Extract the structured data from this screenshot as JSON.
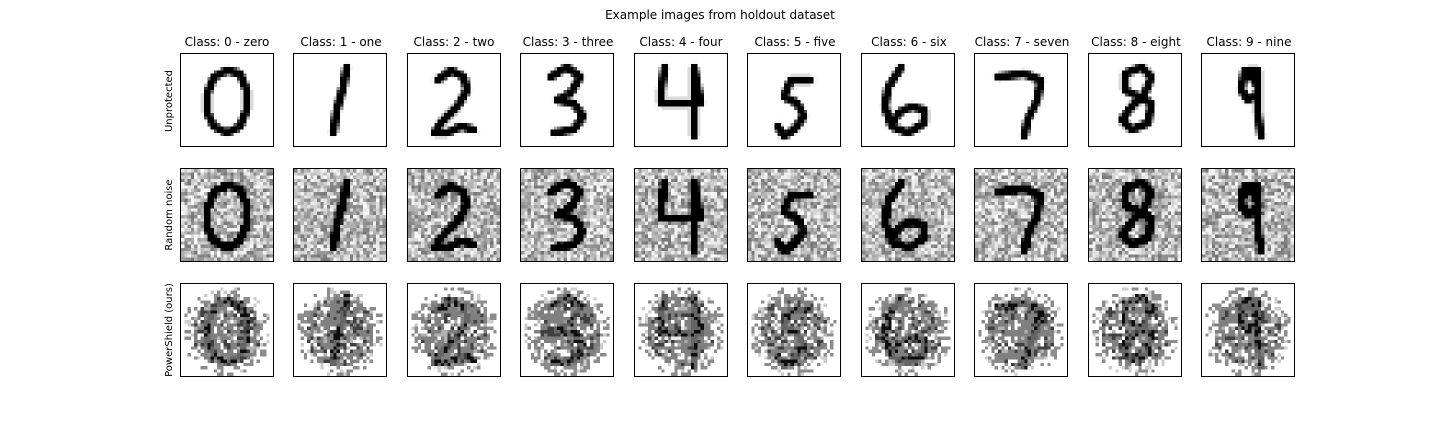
{
  "figure": {
    "title": "Example images from holdout dataset",
    "columns": [
      "Class: 0 - zero",
      "Class: 1 - one",
      "Class: 2 - two",
      "Class: 3 - three",
      "Class: 4 - four",
      "Class: 5 - five",
      "Class: 6 - six",
      "Class: 7 - seven",
      "Class: 8 - eight",
      "Class: 9 - nine"
    ],
    "rows": [
      "Unprotected",
      "Random noise",
      "PowerShield (ours)"
    ]
  }
}
